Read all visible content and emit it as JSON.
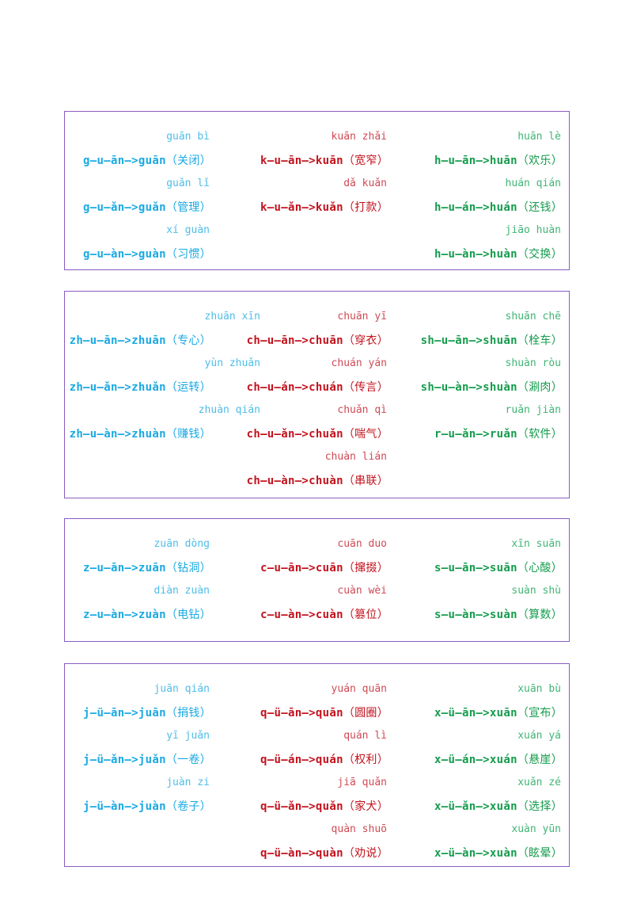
{
  "colors": {
    "blue": "#1aa9e3",
    "red": "#c3121d",
    "green": "#159c4d",
    "border": "#8a5cc0"
  },
  "boxes": [
    {
      "rows": [
        [
          {
            "pinyin": "guān bì",
            "formula": "g—u—ān—>guān",
            "hanzi": "（关闭）"
          },
          {
            "pinyin": "kuān zhǎi",
            "formula": "k—u—ān—>kuān",
            "hanzi": "（宽窄）"
          },
          {
            "pinyin": "huān lè",
            "formula": "h—u—ān—>huān",
            "hanzi": "（欢乐）"
          }
        ],
        [
          {
            "pinyin": "guǎn lǐ",
            "formula": "g—u—ǎn—>guǎn",
            "hanzi": "（管理）"
          },
          {
            "pinyin": "dǎ kuǎn",
            "formula": "k—u—ǎn—>kuǎn",
            "hanzi": "（打款）"
          },
          {
            "pinyin": "huán qián",
            "formula": "h—u—án—>huán",
            "hanzi": "（还钱）"
          }
        ],
        [
          {
            "pinyin": "xí guàn",
            "formula": "g—u—àn—>guàn",
            "hanzi": "（习惯）"
          },
          null,
          {
            "pinyin": "jiāo huàn",
            "formula": "h—u—àn—>huàn",
            "hanzi": "（交换）"
          }
        ]
      ]
    },
    {
      "rows": [
        [
          {
            "pinyin": "zhuān xīn",
            "formula": "zh—u—ān—>zhuān",
            "hanzi": "（专心）"
          },
          {
            "pinyin": "chuān yī",
            "formula": "ch—u—ān—>chuān",
            "hanzi": "（穿衣）"
          },
          {
            "pinyin": "shuān chē",
            "formula": "sh—u—ān—>shuān",
            "hanzi": "（栓车）"
          }
        ],
        [
          {
            "pinyin": "yùn zhuǎn",
            "formula": "zh—u—ǎn—>zhuǎn",
            "hanzi": "（运转）"
          },
          {
            "pinyin": "chuán yán",
            "formula": "ch—u—án—>chuán",
            "hanzi": "（传言）"
          },
          {
            "pinyin": "shuàn ròu",
            "formula": "sh—u—àn—>shuàn",
            "hanzi": "（涮肉）"
          }
        ],
        [
          {
            "pinyin": "zhuàn qián",
            "formula": "zh—u—àn—>zhuàn",
            "hanzi": "（赚钱）"
          },
          {
            "pinyin": "chuǎn qì",
            "formula": "ch—u—ǎn—>chuǎn",
            "hanzi": "（喘气）"
          },
          {
            "pinyin": "ruǎn jiàn",
            "formula": "r—u—ǎn—>ruǎn",
            "hanzi": "（软件）"
          }
        ],
        [
          null,
          {
            "pinyin": "chuàn lián",
            "formula": "ch—u—àn—>chuàn",
            "hanzi": "（串联）"
          },
          null
        ]
      ]
    },
    {
      "rows": [
        [
          {
            "pinyin": "zuān dòng",
            "formula": "z—u—ān—>zuān",
            "hanzi": "（钻洞）"
          },
          {
            "pinyin": "cuān duo",
            "formula": "c—u—ān—>cuān",
            "hanzi": "（撺掇）"
          },
          {
            "pinyin": "xīn suān",
            "formula": "s—u—ān—>suān",
            "hanzi": "（心酸）"
          }
        ],
        [
          {
            "pinyin": "diàn zuàn",
            "formula": "z—u—àn—>zuàn",
            "hanzi": "（电钻）"
          },
          {
            "pinyin": "cuàn wèi",
            "formula": "c—u—àn—>cuàn",
            "hanzi": "（篡位）"
          },
          {
            "pinyin": "suàn shù",
            "formula": "s—u—àn—>suàn",
            "hanzi": "（算数）"
          }
        ]
      ]
    },
    {
      "rows": [
        [
          {
            "pinyin": "juān qián",
            "formula": "j—ü—ān—>juān",
            "hanzi": "（捐钱）"
          },
          {
            "pinyin": "yuán quān",
            "formula": "q—ü—ān—>quān",
            "hanzi": "（圆圈）"
          },
          {
            "pinyin": "xuān bù",
            "formula": "x—ü—ān—>xuān",
            "hanzi": "（宣布）"
          }
        ],
        [
          {
            "pinyin": "yī juǎn",
            "formula": "j—ü—ǎn—>juǎn",
            "hanzi": "（一卷）"
          },
          {
            "pinyin": "quán lì",
            "formula": "q—ü—án—>quán",
            "hanzi": "（权利）"
          },
          {
            "pinyin": "xuán yá",
            "formula": "x—ü—án—>xuán",
            "hanzi": "（悬崖）"
          }
        ],
        [
          {
            "pinyin": "juàn zi",
            "formula": "j—ü—àn—>juàn",
            "hanzi": "（卷子）"
          },
          {
            "pinyin": "jiā quǎn",
            "formula": "q—ü—ǎn—>quǎn",
            "hanzi": "（家犬）"
          },
          {
            "pinyin": "xuǎn zé",
            "formula": "x—ü—ǎn—>xuǎn",
            "hanzi": "（选择）"
          }
        ],
        [
          null,
          {
            "pinyin": "quàn shuō",
            "formula": "q—ü—àn—>quàn",
            "hanzi": "（劝说）"
          },
          {
            "pinyin": "xuàn yūn",
            "formula": "x—ü—àn—>xuàn",
            "hanzi": "（眩晕）"
          }
        ]
      ]
    }
  ]
}
